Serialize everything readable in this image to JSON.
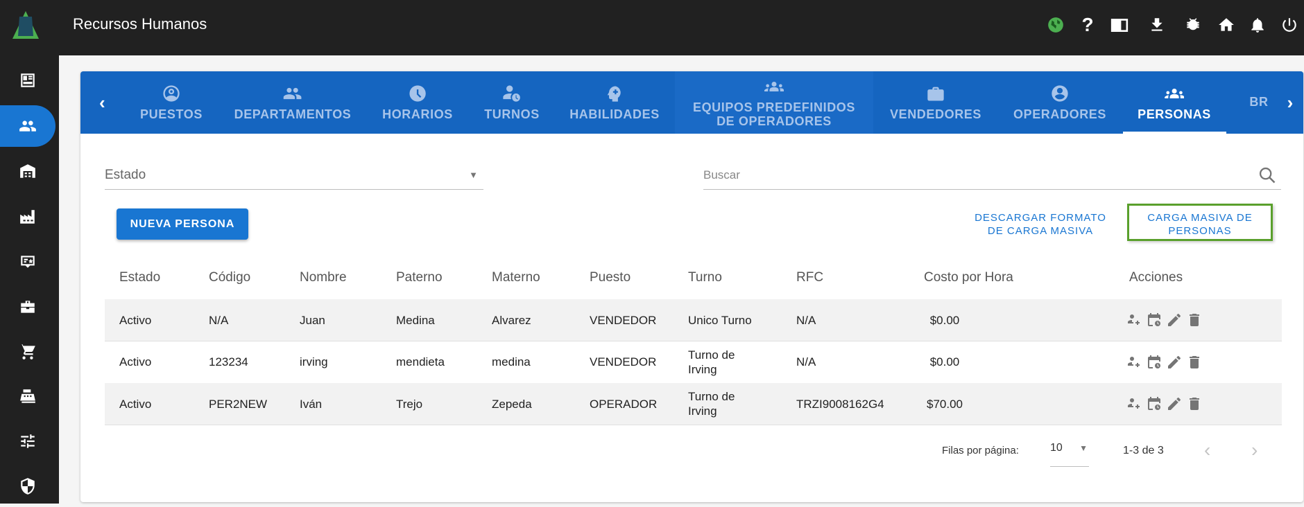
{
  "header": {
    "title": "Recursos Humanos",
    "icons": [
      "globe-icon",
      "help-icon",
      "book-icon",
      "download-icon",
      "bug-icon",
      "home-icon",
      "bell-icon",
      "power-icon"
    ],
    "globe_color": "#4caf50"
  },
  "sidebar": {
    "items": [
      "dashboard",
      "people",
      "warehouse",
      "factory",
      "badge",
      "briefcase",
      "cart",
      "cash-register",
      "tune",
      "shield"
    ],
    "active": "people"
  },
  "tabs": [
    {
      "label": "PUESTOS",
      "icon": "account-circle-icon"
    },
    {
      "label": "DEPARTAMENTOS",
      "icon": "people-icon"
    },
    {
      "label": "HORARIOS",
      "icon": "clock-icon"
    },
    {
      "label": "TURNOS",
      "icon": "person-clock-icon"
    },
    {
      "label": "HABILIDADES",
      "icon": "brain-icon"
    },
    {
      "label": "EQUIPOS PREDEFINIDOS DE OPERADORES",
      "icon": "groups-icon"
    },
    {
      "label": "VENDEDORES",
      "icon": "briefcase-icon"
    },
    {
      "label": "OPERADORES",
      "icon": "account-circle-icon"
    },
    {
      "label": "PERSONAS",
      "icon": "groups-icon",
      "active": true
    },
    {
      "label": "BR",
      "icon": ""
    }
  ],
  "filters": {
    "estado_label": "Estado",
    "search_placeholder": "Buscar"
  },
  "actions": {
    "new": "NUEVA PERSONA",
    "download_format": "DESCARGAR FORMATO DE CARGA MASIVA",
    "bulk_upload": "CARGA MASIVA DE PERSONAS",
    "highlight_color": "#5aa02c"
  },
  "table": {
    "headers": [
      "Estado",
      "Código",
      "Nombre",
      "Paterno",
      "Materno",
      "Puesto",
      "Turno",
      "RFC",
      "Costo por Hora",
      "Acciones"
    ],
    "rows": [
      [
        "Activo",
        "N/A",
        "Juan",
        "Medina",
        "Alvarez",
        "VENDEDOR",
        "Unico Turno",
        "N/A",
        "$0.00"
      ],
      [
        "Activo",
        "123234",
        "irving",
        "mendieta",
        "medina",
        "VENDEDOR",
        "Turno de Irving",
        "N/A",
        "$0.00"
      ],
      [
        "Activo",
        "PER2NEW",
        "Iván",
        "Trejo",
        "Zepeda",
        "OPERADOR",
        "Turno de Irving",
        "TRZI9008162G4",
        "$70.00"
      ]
    ]
  },
  "pagination": {
    "rows_per_page_label": "Filas por página:",
    "rows_per_page": "10",
    "range": "1-3 de 3"
  }
}
